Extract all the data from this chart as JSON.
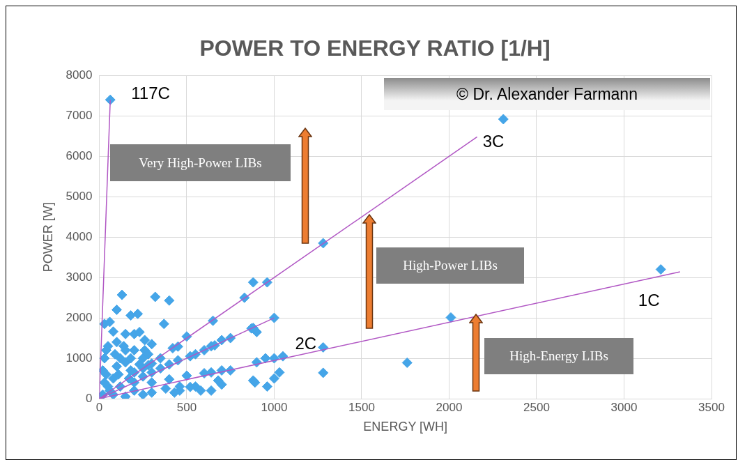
{
  "chart_data": {
    "type": "scatter",
    "title": "POWER TO ENERGY RATIO [1/H]",
    "xlabel": "ENERGY [WH]",
    "ylabel": "POWER [W]",
    "xlim": [
      0,
      3500
    ],
    "xticks": [
      0,
      500,
      1000,
      1500,
      2000,
      2500,
      3000,
      3500
    ],
    "ylim": [
      0,
      8000
    ],
    "yticks": [
      0,
      1000,
      2000,
      3000,
      4000,
      5000,
      6000,
      7000,
      8000
    ],
    "grid": true,
    "legend": false,
    "series": [
      {
        "color": "#45a5e8",
        "x": [
          63,
          2310,
          3210,
          2010,
          1280,
          1280,
          1280,
          1760,
          960,
          880,
          830,
          1000,
          880,
          900,
          870,
          750,
          700,
          650,
          640,
          660,
          500,
          420,
          450,
          400,
          320,
          220,
          180,
          130,
          100,
          230,
          200,
          150,
          80,
          30,
          60,
          370,
          260,
          300,
          950,
          1000,
          1050,
          900,
          1030,
          1000,
          960,
          880,
          890,
          750,
          700,
          640,
          600,
          500,
          400,
          300,
          640,
          550,
          700,
          680,
          580,
          460,
          460,
          380,
          430,
          520,
          600,
          550,
          520,
          450,
          400,
          350,
          300,
          250,
          200,
          300,
          280,
          350,
          250,
          200,
          20,
          50,
          80,
          100,
          120,
          150,
          180,
          200,
          50,
          30,
          100,
          150,
          250,
          230,
          10,
          40,
          120,
          200,
          300,
          80,
          150,
          250,
          30,
          60,
          110,
          170,
          20,
          40,
          90,
          140,
          180,
          260,
          280
        ],
        "marker": "diamond",
        "values": [
          7400,
          6920,
          3200,
          2010,
          3850,
          1270,
          640,
          890,
          2880,
          2880,
          2500,
          2000,
          1750,
          1650,
          1740,
          1500,
          1450,
          1930,
          1300,
          1320,
          1540,
          1250,
          1290,
          2430,
          2520,
          2100,
          2060,
          2570,
          2200,
          1650,
          1600,
          1600,
          1660,
          1850,
          1900,
          1850,
          1450,
          1350,
          1000,
          1000,
          1050,
          900,
          650,
          500,
          300,
          450,
          400,
          700,
          700,
          650,
          630,
          570,
          480,
          400,
          200,
          300,
          350,
          450,
          200,
          200,
          300,
          250,
          150,
          290,
          1200,
          1100,
          1050,
          950,
          850,
          750,
          650,
          550,
          400,
          870,
          830,
          1000,
          750,
          650,
          100,
          300,
          500,
          800,
          1000,
          900,
          700,
          1200,
          1300,
          1000,
          1400,
          1200,
          1000,
          850,
          50,
          600,
          300,
          200,
          150,
          100,
          50,
          100,
          400,
          200,
          600,
          500,
          700,
          1200,
          1100,
          1300,
          1000,
          1200,
          1100
        ]
      },
      {
        "type": "line",
        "color": "#b157c4",
        "x": [
          0,
          63
        ],
        "values": [
          0,
          7400
        ],
        "marker": "none"
      },
      {
        "type": "line",
        "color": "#b157c4",
        "x": [
          0,
          2160
        ],
        "values": [
          0,
          6480
        ],
        "marker": "none"
      },
      {
        "type": "line",
        "color": "#b157c4",
        "x": [
          0,
          1000
        ],
        "values": [
          0,
          2000
        ],
        "marker": "none"
      },
      {
        "type": "line",
        "color": "#b157c4",
        "x": [
          0,
          3320
        ],
        "values": [
          0,
          3140
        ],
        "marker": "none"
      }
    ],
    "annotations": [
      {
        "text": "117C",
        "x": 63,
        "y": 7400
      },
      {
        "text": "3C",
        "x": 2160,
        "y": 6480
      },
      {
        "text": "2C",
        "x": 1000,
        "y": 2000
      },
      {
        "text": "1C",
        "x": 3320,
        "y": 3140
      },
      "Very High-Power LIBs",
      "High-Power LIBs",
      "High-Energy LIBs",
      "© Dr. Alexander Farmann"
    ]
  }
}
